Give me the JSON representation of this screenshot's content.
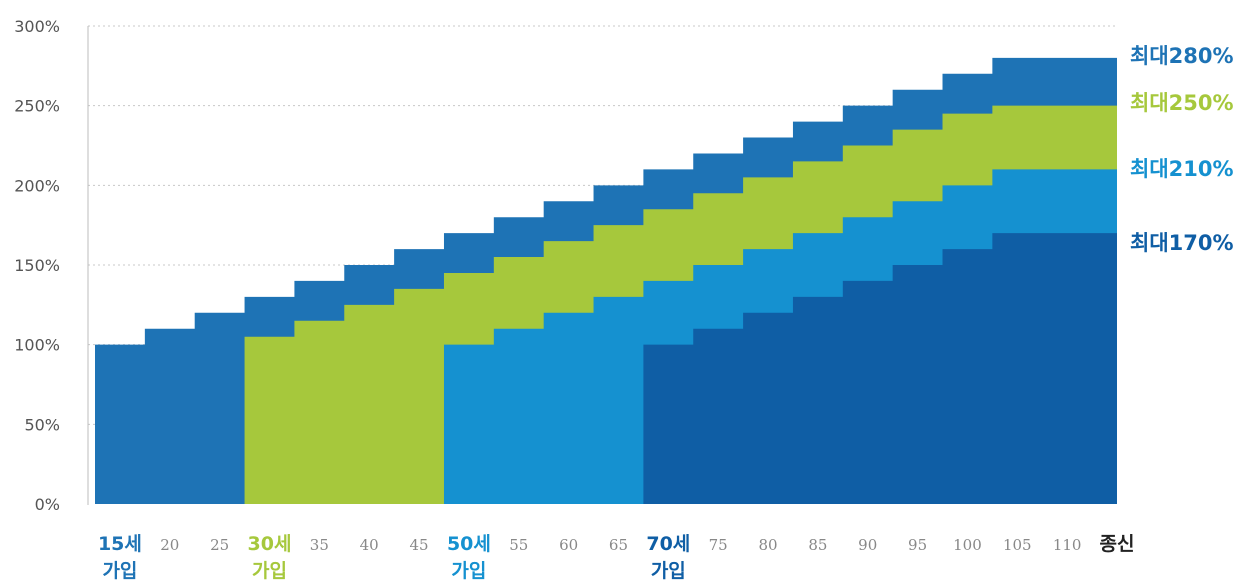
{
  "chart_data": {
    "type": "area",
    "title": "",
    "xlabel": "",
    "ylabel": "",
    "ylim": [
      0,
      300
    ],
    "yticks": [
      "0%",
      "50%",
      "100%",
      "150%",
      "200%",
      "250%",
      "300%"
    ],
    "grid": true,
    "x_labels": [
      {
        "text": "15세",
        "sub": "가입",
        "color": "#1e73b5"
      },
      {
        "text": "20"
      },
      {
        "text": "25"
      },
      {
        "text": "30세",
        "sub": "가입",
        "color": "#a6c83c"
      },
      {
        "text": "35"
      },
      {
        "text": "40"
      },
      {
        "text": "45"
      },
      {
        "text": "50세",
        "sub": "가입",
        "color": "#1591d0"
      },
      {
        "text": "55"
      },
      {
        "text": "60"
      },
      {
        "text": "65"
      },
      {
        "text": "70세",
        "sub": "가입",
        "color": "#0f5ea5"
      },
      {
        "text": "75"
      },
      {
        "text": "80"
      },
      {
        "text": "85"
      },
      {
        "text": "90"
      },
      {
        "text": "95"
      },
      {
        "text": "100"
      },
      {
        "text": "105"
      },
      {
        "text": "110"
      },
      {
        "text": "종신",
        "color": "#222222"
      }
    ],
    "series": [
      {
        "end_label": "최대280%",
        "color": "#1e73b5",
        "start_index": 0,
        "values": [
          100,
          110,
          120,
          130,
          140,
          150,
          160,
          170,
          180,
          190,
          200,
          210,
          220,
          230,
          240,
          250,
          260,
          270,
          280,
          280,
          280
        ]
      },
      {
        "end_label": "최대250%",
        "color": "#a6c83c",
        "start_index": 3,
        "values": [
          105,
          115,
          125,
          135,
          145,
          155,
          165,
          175,
          185,
          195,
          205,
          215,
          225,
          235,
          245,
          250,
          250,
          250
        ]
      },
      {
        "end_label": "최대210%",
        "color": "#1591d0",
        "start_index": 7,
        "values": [
          100,
          110,
          120,
          130,
          140,
          150,
          160,
          170,
          180,
          190,
          200,
          210,
          210,
          210
        ]
      },
      {
        "end_label": "최대170%",
        "color": "#0f5ea5",
        "start_index": 11,
        "values": [
          100,
          110,
          120,
          130,
          140,
          150,
          160,
          170,
          170,
          170
        ]
      }
    ]
  }
}
